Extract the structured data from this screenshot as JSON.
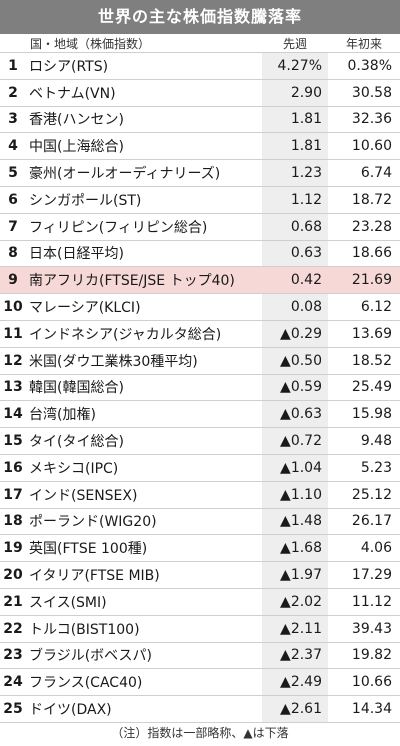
{
  "title": "世界の主な株価指数騰落率",
  "columns": {
    "name": "国・地域（株価指数）",
    "week": "先週",
    "ytd": "年初来"
  },
  "rows": [
    {
      "rank": "1",
      "name": "ロシア(RTS)",
      "week": "4.27%",
      "ytd": "0.38%"
    },
    {
      "rank": "2",
      "name": "ベトナム(VN)",
      "week": "2.90",
      "ytd": "30.58"
    },
    {
      "rank": "3",
      "name": "香港(ハンセン)",
      "week": "1.81",
      "ytd": "32.36"
    },
    {
      "rank": "4",
      "name": "中国(上海総合)",
      "week": "1.81",
      "ytd": "10.60"
    },
    {
      "rank": "5",
      "name": "豪州(オールオーディナリーズ)",
      "week": "1.23",
      "ytd": "6.74"
    },
    {
      "rank": "6",
      "name": "シンガポール(ST)",
      "week": "1.12",
      "ytd": "18.72"
    },
    {
      "rank": "7",
      "name": "フィリピン(フィリピン総合)",
      "week": "0.68",
      "ytd": "23.28"
    },
    {
      "rank": "8",
      "name": "日本(日経平均)",
      "week": "0.63",
      "ytd": "18.66"
    },
    {
      "rank": "9",
      "name": "南アフリカ(FTSE/JSE トップ40)",
      "week": "0.42",
      "ytd": "21.69",
      "highlight": true
    },
    {
      "rank": "10",
      "name": "マレーシア(KLCI)",
      "week": "0.08",
      "ytd": "6.12"
    },
    {
      "rank": "11",
      "name": "インドネシア(ジャカルタ総合)",
      "week": "▲0.29",
      "ytd": "13.69"
    },
    {
      "rank": "12",
      "name": "米国(ダウ工業株30種平均)",
      "week": "▲0.50",
      "ytd": "18.52"
    },
    {
      "rank": "13",
      "name": "韓国(韓国総合)",
      "week": "▲0.59",
      "ytd": "25.49"
    },
    {
      "rank": "14",
      "name": "台湾(加権)",
      "week": "▲0.63",
      "ytd": "15.98"
    },
    {
      "rank": "15",
      "name": "タイ(タイ総合)",
      "week": "▲0.72",
      "ytd": "9.48"
    },
    {
      "rank": "16",
      "name": "メキシコ(IPC)",
      "week": "▲1.04",
      "ytd": "5.23"
    },
    {
      "rank": "17",
      "name": "インド(SENSEX)",
      "week": "▲1.10",
      "ytd": "25.12"
    },
    {
      "rank": "18",
      "name": "ポーランド(WIG20)",
      "week": "▲1.48",
      "ytd": "26.17"
    },
    {
      "rank": "19",
      "name": "英国(FTSE 100種)",
      "week": "▲1.68",
      "ytd": "4.06"
    },
    {
      "rank": "20",
      "name": "イタリア(FTSE MIB)",
      "week": "▲1.97",
      "ytd": "17.29"
    },
    {
      "rank": "21",
      "name": "スイス(SMI)",
      "week": "▲2.02",
      "ytd": "11.12"
    },
    {
      "rank": "22",
      "name": "トルコ(BIST100)",
      "week": "▲2.11",
      "ytd": "39.43"
    },
    {
      "rank": "23",
      "name": "ブラジル(ボベスパ)",
      "week": "▲2.37",
      "ytd": "19.82"
    },
    {
      "rank": "24",
      "name": "フランス(CAC40)",
      "week": "▲2.49",
      "ytd": "10.66"
    },
    {
      "rank": "25",
      "name": "ドイツ(DAX)",
      "week": "▲2.61",
      "ytd": "14.34"
    }
  ],
  "note": "（注）指数は一部略称、▲は下落",
  "colors": {
    "title_bg": "#7f7f7f",
    "highlight_bg": "#f6d9d7",
    "week_col_bg": "#eeeeee"
  }
}
